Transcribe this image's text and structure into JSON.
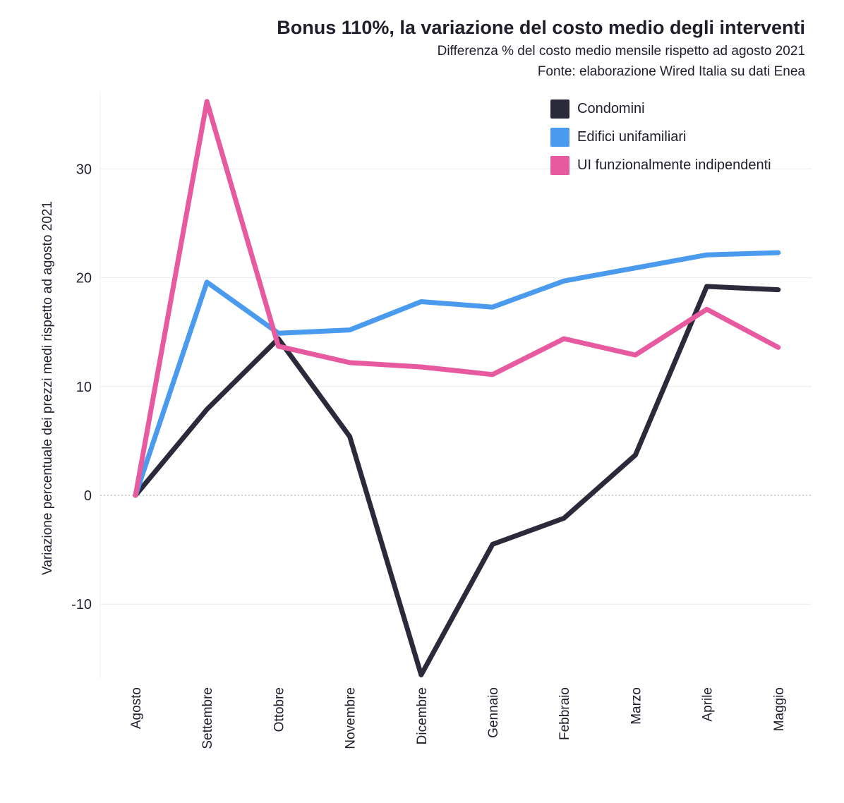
{
  "chart_data": {
    "type": "line",
    "title": "Bonus 110%, la variazione del costo medio degli interventi",
    "subtitle": "Differenza % del costo medio mensile rispetto ad agosto 2021",
    "source": "Fonte: elaborazione Wired Italia su dati Enea",
    "xlabel": "",
    "ylabel": "Variazione percentuale dei prezzi medi rispetto ad agosto 2021",
    "categories": [
      "Agosto",
      "Settembre",
      "Ottobre",
      "Novembre",
      "Dicembre",
      "Gennaio",
      "Febbraio",
      "Marzo",
      "Aprile",
      "Maggio"
    ],
    "ylim": [
      -16.5,
      37.5
    ],
    "yticks": [
      -10,
      0,
      10,
      20,
      30
    ],
    "grid": true,
    "legend_position": "top-right",
    "series": [
      {
        "name": "Condomini",
        "color": "#2b2a3a",
        "values": [
          0,
          7.9,
          14.4,
          5.4,
          -16.5,
          -4.5,
          -2.1,
          3.7,
          19.2,
          18.9
        ]
      },
      {
        "name": "Edifici unifamiliari",
        "color": "#4a9aee",
        "values": [
          0,
          19.6,
          14.9,
          15.2,
          17.8,
          17.3,
          19.7,
          20.9,
          22.1,
          22.3
        ]
      },
      {
        "name": "UI funzionalmente indipendenti",
        "color": "#e85a9f",
        "values": [
          0,
          36.2,
          13.7,
          12.2,
          11.8,
          11.1,
          14.4,
          12.9,
          17.1,
          13.6
        ]
      }
    ]
  }
}
